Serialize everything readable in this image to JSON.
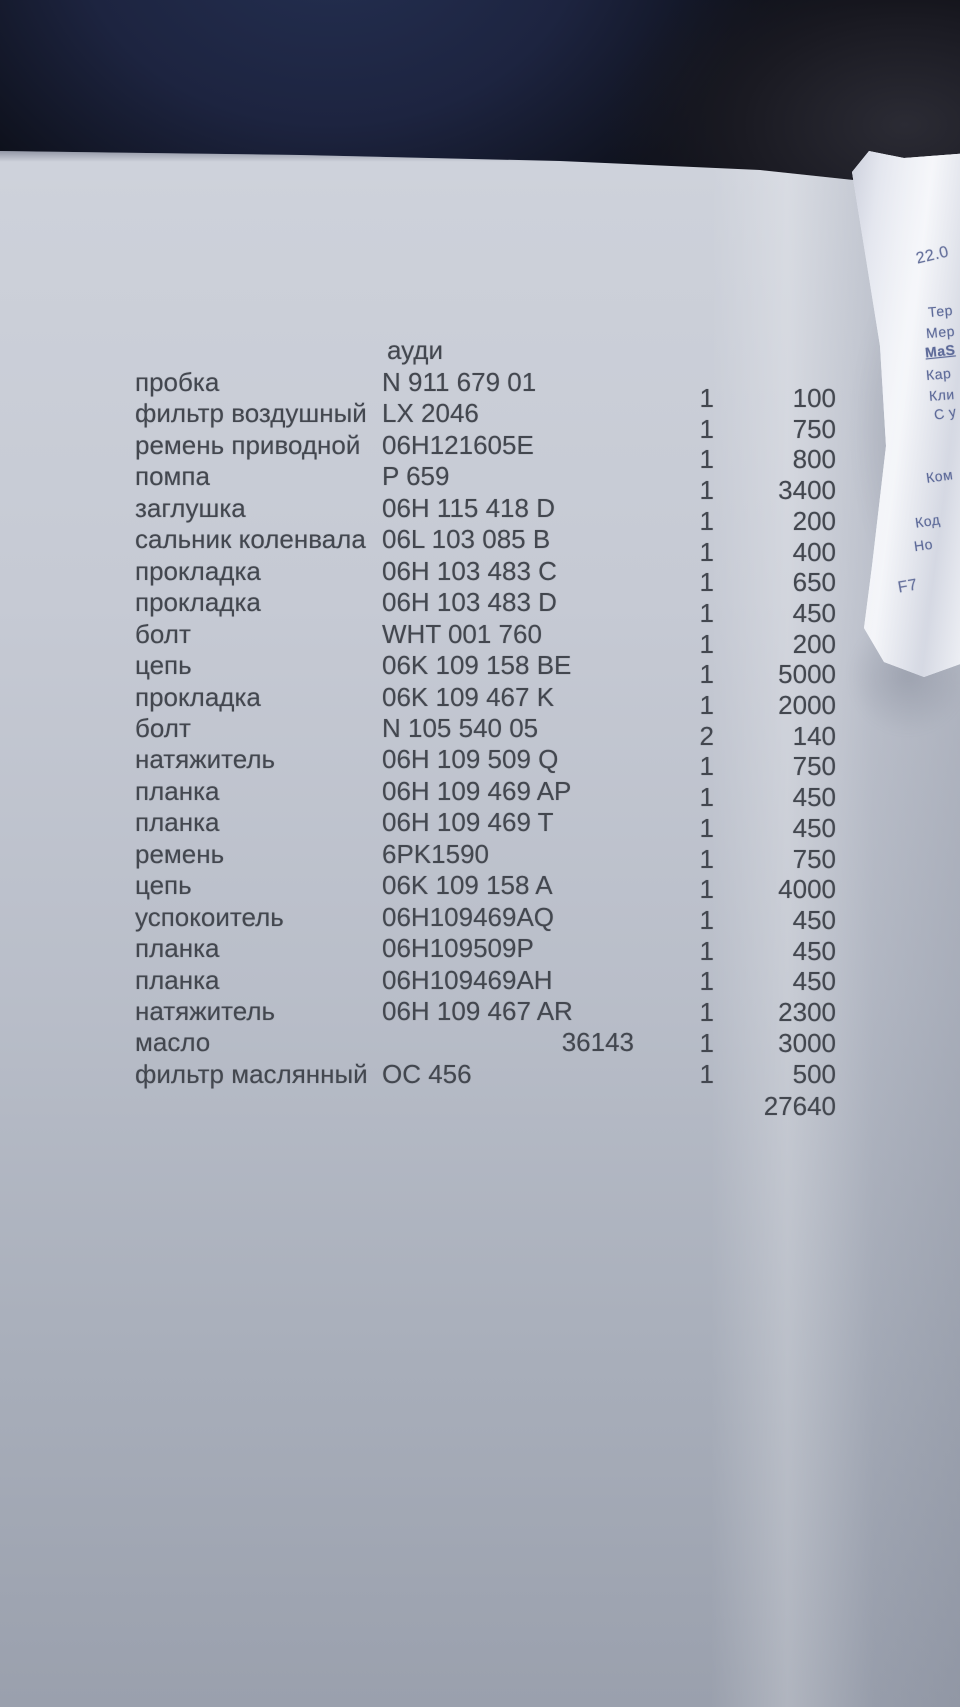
{
  "parts_list": {
    "brand_header": "ауди",
    "rows": [
      {
        "name": "пробка",
        "part": "N 911 679 01",
        "qty": "1",
        "price": "100"
      },
      {
        "name": "фильтр воздушный",
        "part": "LX 2046",
        "qty": "1",
        "price": "750"
      },
      {
        "name": "ремень приводной",
        "part": "06H121605E",
        "qty": "1",
        "price": "800"
      },
      {
        "name": "помпа",
        "part": "P 659",
        "qty": "1",
        "price": "3400"
      },
      {
        "name": "заглушка",
        "part": "06H 115 418 D",
        "qty": "1",
        "price": "200"
      },
      {
        "name": "сальник коленвала",
        "part": "06L 103 085 B",
        "qty": "1",
        "price": "400"
      },
      {
        "name": "прокладка",
        "part": "06H 103 483 C",
        "qty": "1",
        "price": "650"
      },
      {
        "name": "прокладка",
        "part": "06H 103 483 D",
        "qty": "1",
        "price": "450"
      },
      {
        "name": "болт",
        "part": "WHT 001 760",
        "qty": "1",
        "price": "200"
      },
      {
        "name": "цепь",
        "part": "06K 109 158 BE",
        "qty": "1",
        "price": "5000"
      },
      {
        "name": "прокладка",
        "part": "06K 109 467 K",
        "qty": "1",
        "price": "2000"
      },
      {
        "name": "болт",
        "part": "N 105 540 05",
        "qty": "2",
        "price": "140"
      },
      {
        "name": "натяжитель",
        "part": "06H 109 509 Q",
        "qty": "1",
        "price": "750"
      },
      {
        "name": "планка",
        "part": "06H 109 469 AP",
        "qty": "1",
        "price": "450"
      },
      {
        "name": "планка",
        "part": "06H 109 469 T",
        "qty": "1",
        "price": "450"
      },
      {
        "name": "ремень",
        "part": "6PK1590",
        "qty": "1",
        "price": "750"
      },
      {
        "name": "цепь",
        "part": "06K 109 158 A",
        "qty": "1",
        "price": "4000"
      },
      {
        "name": "успокоитель",
        "part": "06H109469AQ",
        "qty": "1",
        "price": "450"
      },
      {
        "name": "планка",
        "part": "06H109509P",
        "qty": "1",
        "price": "450"
      },
      {
        "name": "планка",
        "part": "06H109469AH",
        "qty": "1",
        "price": "450"
      },
      {
        "name": "натяжитель",
        "part": "06H 109 467 AR",
        "qty": "1",
        "price": "2300"
      },
      {
        "name": "масло",
        "part": "36143",
        "qty": "1",
        "price": "3000",
        "part_right": true
      },
      {
        "name": "фильтр маслянный",
        "part": "OC 456",
        "qty": "1",
        "price": "500"
      }
    ],
    "total": "27640"
  },
  "receipt": {
    "fragments": [
      "22.0",
      "Тер",
      "Мер",
      "MaS",
      "Кар",
      "Кли",
      "С у",
      "Ком",
      "Код",
      "Но",
      "F7"
    ]
  }
}
